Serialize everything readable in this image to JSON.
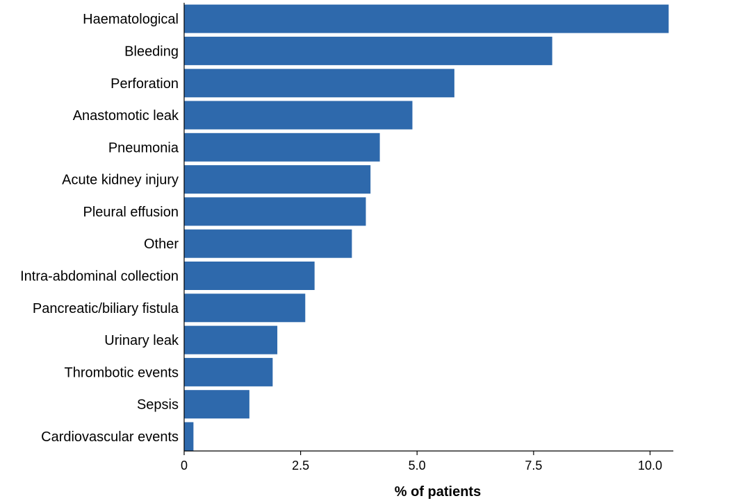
{
  "chart_data": {
    "type": "bar",
    "orientation": "horizontal",
    "title": "",
    "xlabel": "% of patients",
    "ylabel": "",
    "categories": [
      "Haematological",
      "Bleeding",
      "Perforation",
      "Anastomotic leak",
      "Pneumonia",
      "Acute kidney injury",
      "Pleural effusion",
      "Other",
      "Intra-abdominal collection",
      "Pancreatic/biliary fistula",
      "Urinary leak",
      "Thrombotic events",
      "Sepsis",
      "Cardiovascular events"
    ],
    "values": [
      10.4,
      7.9,
      5.8,
      4.9,
      4.2,
      4.0,
      3.9,
      3.6,
      2.8,
      2.6,
      2.0,
      1.9,
      1.4,
      0.2
    ],
    "xlim": [
      0,
      10.5
    ],
    "xticks": [
      0,
      2.5,
      5.0,
      7.5,
      10.0
    ],
    "xtick_labels": [
      "0",
      "2.5",
      "5.0",
      "7.5",
      "10.0"
    ],
    "grid": false,
    "legend": "none",
    "bar_color": "#2e69ac"
  }
}
